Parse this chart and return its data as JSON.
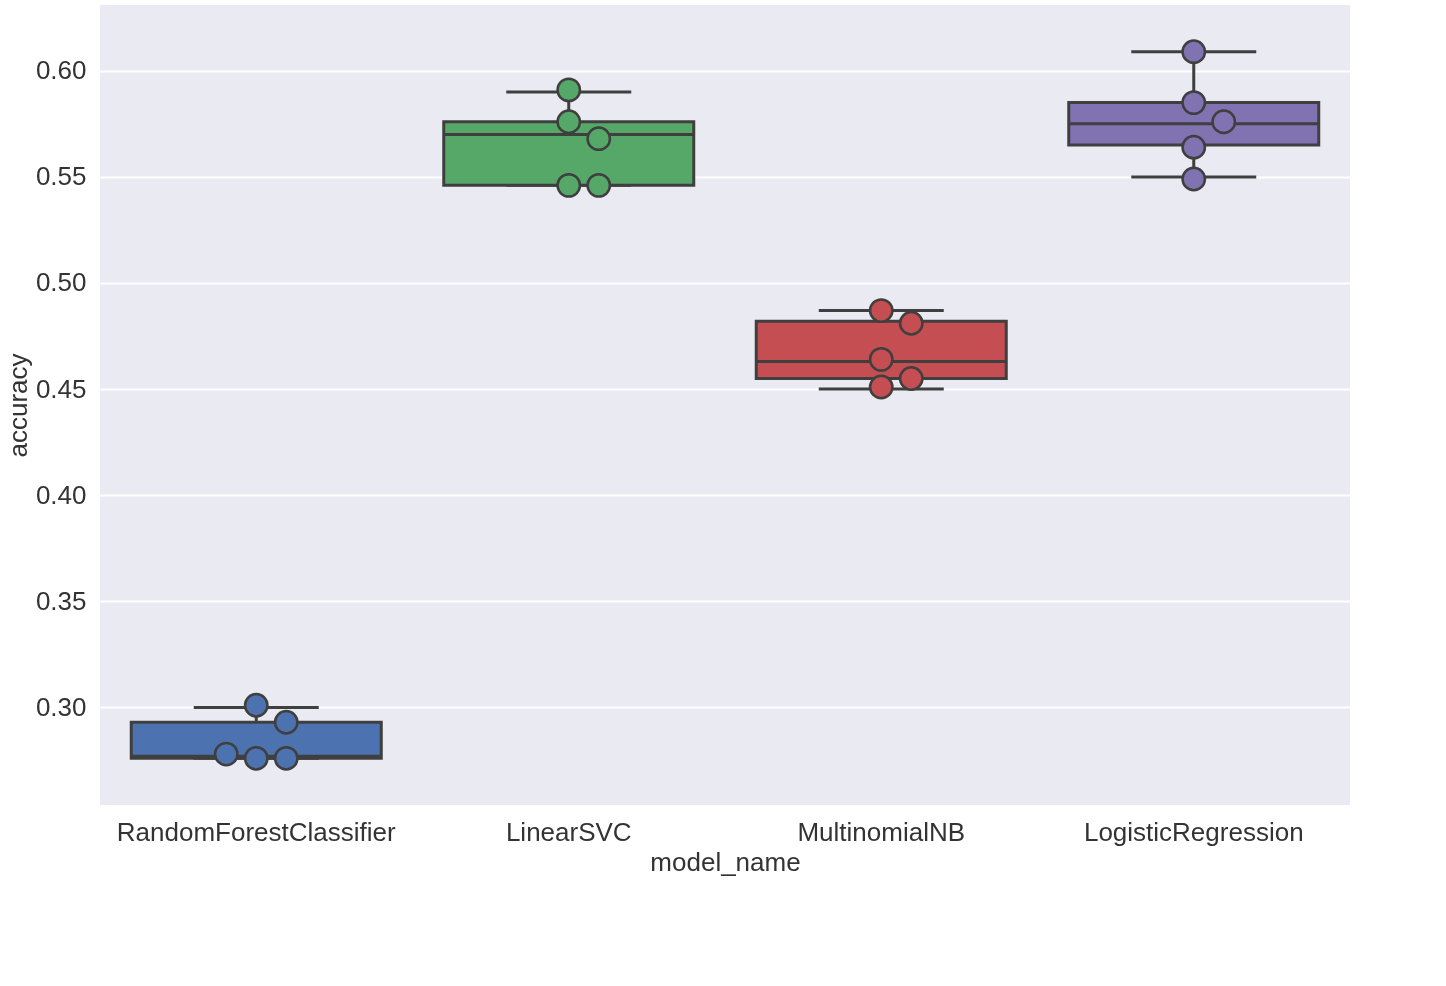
{
  "chart_data": {
    "type": "box",
    "xlabel": "model_name",
    "ylabel": "accuracy",
    "categories": [
      "RandomForestClassifier",
      "LinearSVC",
      "MultinomialNB",
      "LogisticRegression"
    ],
    "colors": [
      "#4c72b0",
      "#55a868",
      "#c44e52",
      "#8172b2"
    ],
    "boxes": [
      {
        "low": 0.276,
        "q1": 0.276,
        "median": 0.277,
        "q3": 0.293,
        "high": 0.3
      },
      {
        "low": 0.546,
        "q1": 0.546,
        "median": 0.57,
        "q3": 0.576,
        "high": 0.59
      },
      {
        "low": 0.45,
        "q1": 0.455,
        "median": 0.463,
        "q3": 0.482,
        "high": 0.487
      },
      {
        "low": 0.55,
        "q1": 0.565,
        "median": 0.575,
        "q3": 0.585,
        "high": 0.609
      }
    ],
    "series": [
      {
        "type": "scatter",
        "color": "#4c72b0",
        "x": [
          "RandomForestClassifier",
          "RandomForestClassifier",
          "RandomForestClassifier",
          "RandomForestClassifier",
          "RandomForestClassifier"
        ],
        "values": [
          0.301,
          0.293,
          0.276,
          0.276,
          0.278
        ]
      },
      {
        "type": "scatter",
        "color": "#55a868",
        "x": [
          "LinearSVC",
          "LinearSVC",
          "LinearSVC",
          "LinearSVC",
          "LinearSVC"
        ],
        "values": [
          0.591,
          0.576,
          0.568,
          0.546,
          0.546
        ]
      },
      {
        "type": "scatter",
        "color": "#c44e52",
        "x": [
          "MultinomialNB",
          "MultinomialNB",
          "MultinomialNB",
          "MultinomialNB",
          "MultinomialNB"
        ],
        "values": [
          0.487,
          0.481,
          0.464,
          0.455,
          0.451
        ]
      },
      {
        "type": "scatter",
        "color": "#8172b2",
        "x": [
          "LogisticRegression",
          "LogisticRegression",
          "LogisticRegression",
          "LogisticRegression",
          "LogisticRegression"
        ],
        "values": [
          0.609,
          0.585,
          0.576,
          0.564,
          0.549
        ]
      }
    ],
    "marker": "circle",
    "ylim": [
      0.254,
      0.631
    ],
    "yticks": [
      {
        "value": 0.3,
        "label": "0.30"
      },
      {
        "value": 0.35,
        "label": "0.35"
      },
      {
        "value": 0.4,
        "label": "0.40"
      },
      {
        "value": 0.45,
        "label": "0.45"
      },
      {
        "value": 0.5,
        "label": "0.50"
      },
      {
        "value": 0.55,
        "label": "0.55"
      },
      {
        "value": 0.6,
        "label": "0.60"
      }
    ],
    "grid": "y"
  }
}
